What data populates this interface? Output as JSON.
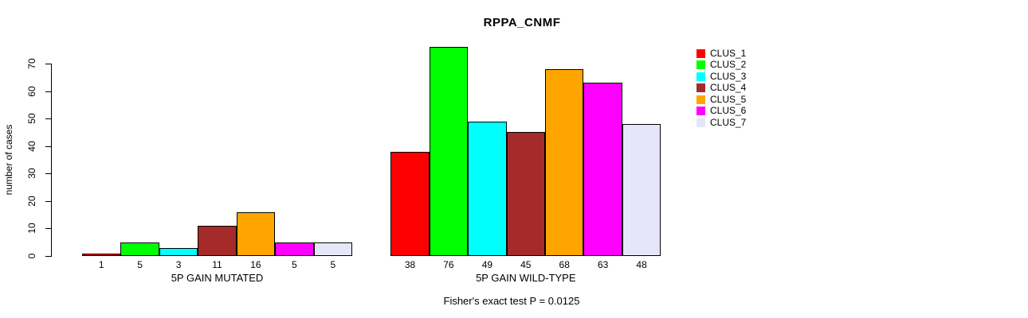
{
  "chart_data": {
    "type": "bar",
    "title": "RPPA_CNMF",
    "ylabel": "number of cases",
    "footer": "Fisher's exact test P = 0.0125",
    "ylim": [
      0,
      76
    ],
    "yticks": [
      0,
      10,
      20,
      30,
      40,
      50,
      60,
      70
    ],
    "grid": false,
    "legend_position": "right",
    "categories": [
      "5P GAIN MUTATED",
      "5P GAIN WILD-TYPE"
    ],
    "groups": [
      {
        "label": "5P GAIN MUTATED",
        "values": [
          1,
          5,
          3,
          11,
          16,
          5,
          5
        ]
      },
      {
        "label": "5P GAIN WILD-TYPE",
        "values": [
          38,
          76,
          49,
          45,
          68,
          63,
          48
        ]
      }
    ],
    "series": [
      {
        "name": "CLUS_1",
        "color": "#FF0000",
        "values": [
          1,
          38
        ]
      },
      {
        "name": "CLUS_2",
        "color": "#00FF00",
        "values": [
          5,
          76
        ]
      },
      {
        "name": "CLUS_3",
        "color": "#00FFFF",
        "values": [
          3,
          49
        ]
      },
      {
        "name": "CLUS_4",
        "color": "#A52A2A",
        "values": [
          11,
          45
        ]
      },
      {
        "name": "CLUS_5",
        "color": "#FFA500",
        "values": [
          16,
          68
        ]
      },
      {
        "name": "CLUS_6",
        "color": "#FF00FF",
        "values": [
          5,
          63
        ]
      },
      {
        "name": "CLUS_7",
        "color": "#E6E6FA",
        "values": [
          5,
          48
        ]
      }
    ],
    "legend": [
      "CLUS_1",
      "CLUS_2",
      "CLUS_3",
      "CLUS_4",
      "CLUS_5",
      "CLUS_6",
      "CLUS_7"
    ],
    "bar_border_color": "#000000",
    "axis_color": "#000000"
  }
}
